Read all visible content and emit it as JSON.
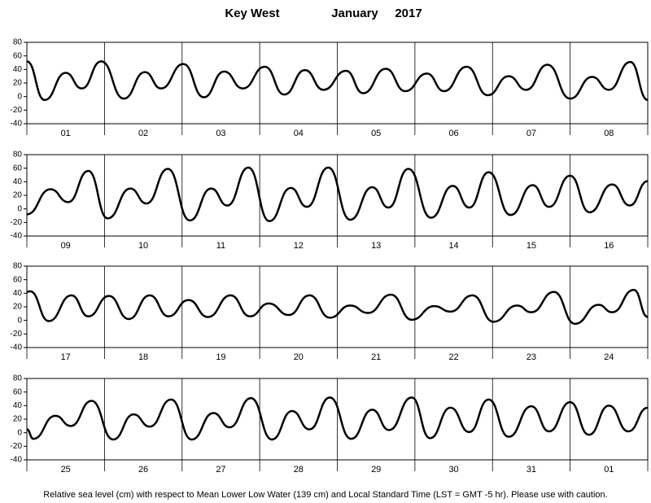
{
  "header": {
    "location": "Key West",
    "month": "January",
    "year": "2017"
  },
  "footer": "Relative sea level (cm) with respect to Mean Lower Low Water (139 cm) and Local Standard Time (LST = GMT -5 hr). Please use with caution.",
  "chart_data": [
    {
      "type": "line",
      "color": "#000000",
      "categories": [
        "01",
        "02",
        "03",
        "04",
        "05",
        "06",
        "07",
        "08"
      ],
      "x": [
        0,
        5.5,
        12,
        17,
        23,
        30,
        36.5,
        41.5,
        48.4,
        54.7,
        61,
        66.8,
        73.6,
        79.6,
        86,
        91.7,
        98.7,
        104,
        111,
        117,
        123.7,
        129,
        136,
        142.5,
        149,
        154.4,
        161,
        168,
        174.8,
        180,
        186.6,
        192
      ],
      "values": [
        52,
        -5,
        35,
        12,
        52,
        -3,
        36,
        12,
        48,
        -1,
        37,
        12,
        44,
        3,
        39,
        10,
        38,
        5,
        41,
        8,
        34,
        8,
        44,
        2,
        30,
        10,
        47,
        -3,
        29,
        10,
        51,
        -5
      ],
      "xlim": [
        0,
        192
      ],
      "xticks": [
        0,
        24,
        48,
        72,
        96,
        120,
        144,
        168,
        192
      ],
      "ylim": [
        -40,
        80
      ],
      "yticks": [
        -40,
        -20,
        0,
        20,
        40,
        60,
        80
      ]
    },
    {
      "type": "line",
      "color": "#000000",
      "categories": [
        "09",
        "10",
        "11",
        "12",
        "13",
        "14",
        "15",
        "16"
      ],
      "x": [
        0,
        7.3,
        12.8,
        19,
        25,
        32,
        37,
        43.6,
        50.4,
        57,
        62,
        68.5,
        75,
        81.6,
        86.6,
        93.2,
        100,
        106.8,
        111.8,
        118,
        125,
        131.7,
        136.8,
        142.8,
        149.6,
        156.4,
        161.5,
        168,
        174,
        181,
        186.4,
        192
      ],
      "values": [
        -8,
        29,
        10,
        56,
        -14,
        30,
        8,
        59,
        -17,
        30,
        5,
        61,
        -18,
        31,
        3,
        61,
        -16,
        32,
        2,
        59,
        -13,
        34,
        2,
        54,
        -9,
        35,
        3,
        49,
        -5,
        36,
        5,
        41
      ],
      "xlim": [
        0,
        192
      ],
      "xticks": [
        0,
        24,
        48,
        72,
        96,
        120,
        144,
        168,
        192
      ],
      "ylim": [
        -40,
        80
      ],
      "yticks": [
        -40,
        -20,
        0,
        20,
        40,
        60,
        80
      ]
    },
    {
      "type": "line",
      "color": "#000000",
      "categories": [
        "17",
        "18",
        "19",
        "20",
        "21",
        "22",
        "23",
        "24"
      ],
      "x": [
        0,
        1,
        6.8,
        13.8,
        19,
        25.4,
        31.5,
        38,
        43.8,
        50,
        56,
        63,
        69,
        74.8,
        81,
        87.4,
        93.7,
        100,
        105.5,
        112.6,
        119,
        126,
        131,
        137.8,
        144.3,
        151.6,
        156,
        163,
        169.5,
        176.8,
        181,
        187.7,
        192
      ],
      "values": [
        42,
        43,
        -1,
        37,
        6,
        36,
        2,
        37,
        6,
        30,
        5,
        37,
        6,
        25,
        8,
        37,
        4,
        22,
        11,
        38,
        1,
        21,
        13,
        37,
        -2,
        22,
        12,
        42,
        -5,
        23,
        12,
        45,
        5
      ],
      "xlim": [
        0,
        192
      ],
      "xticks": [
        0,
        24,
        48,
        72,
        96,
        120,
        144,
        168,
        192
      ],
      "ylim": [
        -40,
        80
      ],
      "yticks": [
        -40,
        -20,
        0,
        20,
        40,
        60,
        80
      ]
    },
    {
      "type": "line",
      "color": "#000000",
      "categories": [
        "25",
        "26",
        "27",
        "28",
        "29",
        "30",
        "31",
        "01"
      ],
      "x": [
        0,
        2,
        8.8,
        13.6,
        20,
        26.7,
        33,
        38,
        44.6,
        51,
        57.7,
        62.7,
        69.3,
        75.8,
        82,
        87.4,
        93.7,
        100.3,
        106.8,
        112,
        119,
        124.7,
        131,
        136.8,
        142.8,
        149,
        156,
        161.5,
        168,
        173.8,
        180,
        186,
        192
      ],
      "values": [
        5,
        -9,
        25,
        10,
        47,
        -10,
        27,
        9,
        49,
        -10,
        29,
        8,
        51,
        -10,
        32,
        5,
        52,
        -9,
        34,
        4,
        52,
        -8,
        37,
        1,
        49,
        -6,
        39,
        2,
        45,
        -3,
        40,
        2,
        37
      ],
      "xlim": [
        0,
        192
      ],
      "xticks": [
        0,
        24,
        48,
        72,
        96,
        120,
        144,
        168,
        192
      ],
      "ylim": [
        -40,
        80
      ],
      "yticks": [
        -40,
        -20,
        0,
        20,
        40,
        60,
        80
      ]
    }
  ]
}
